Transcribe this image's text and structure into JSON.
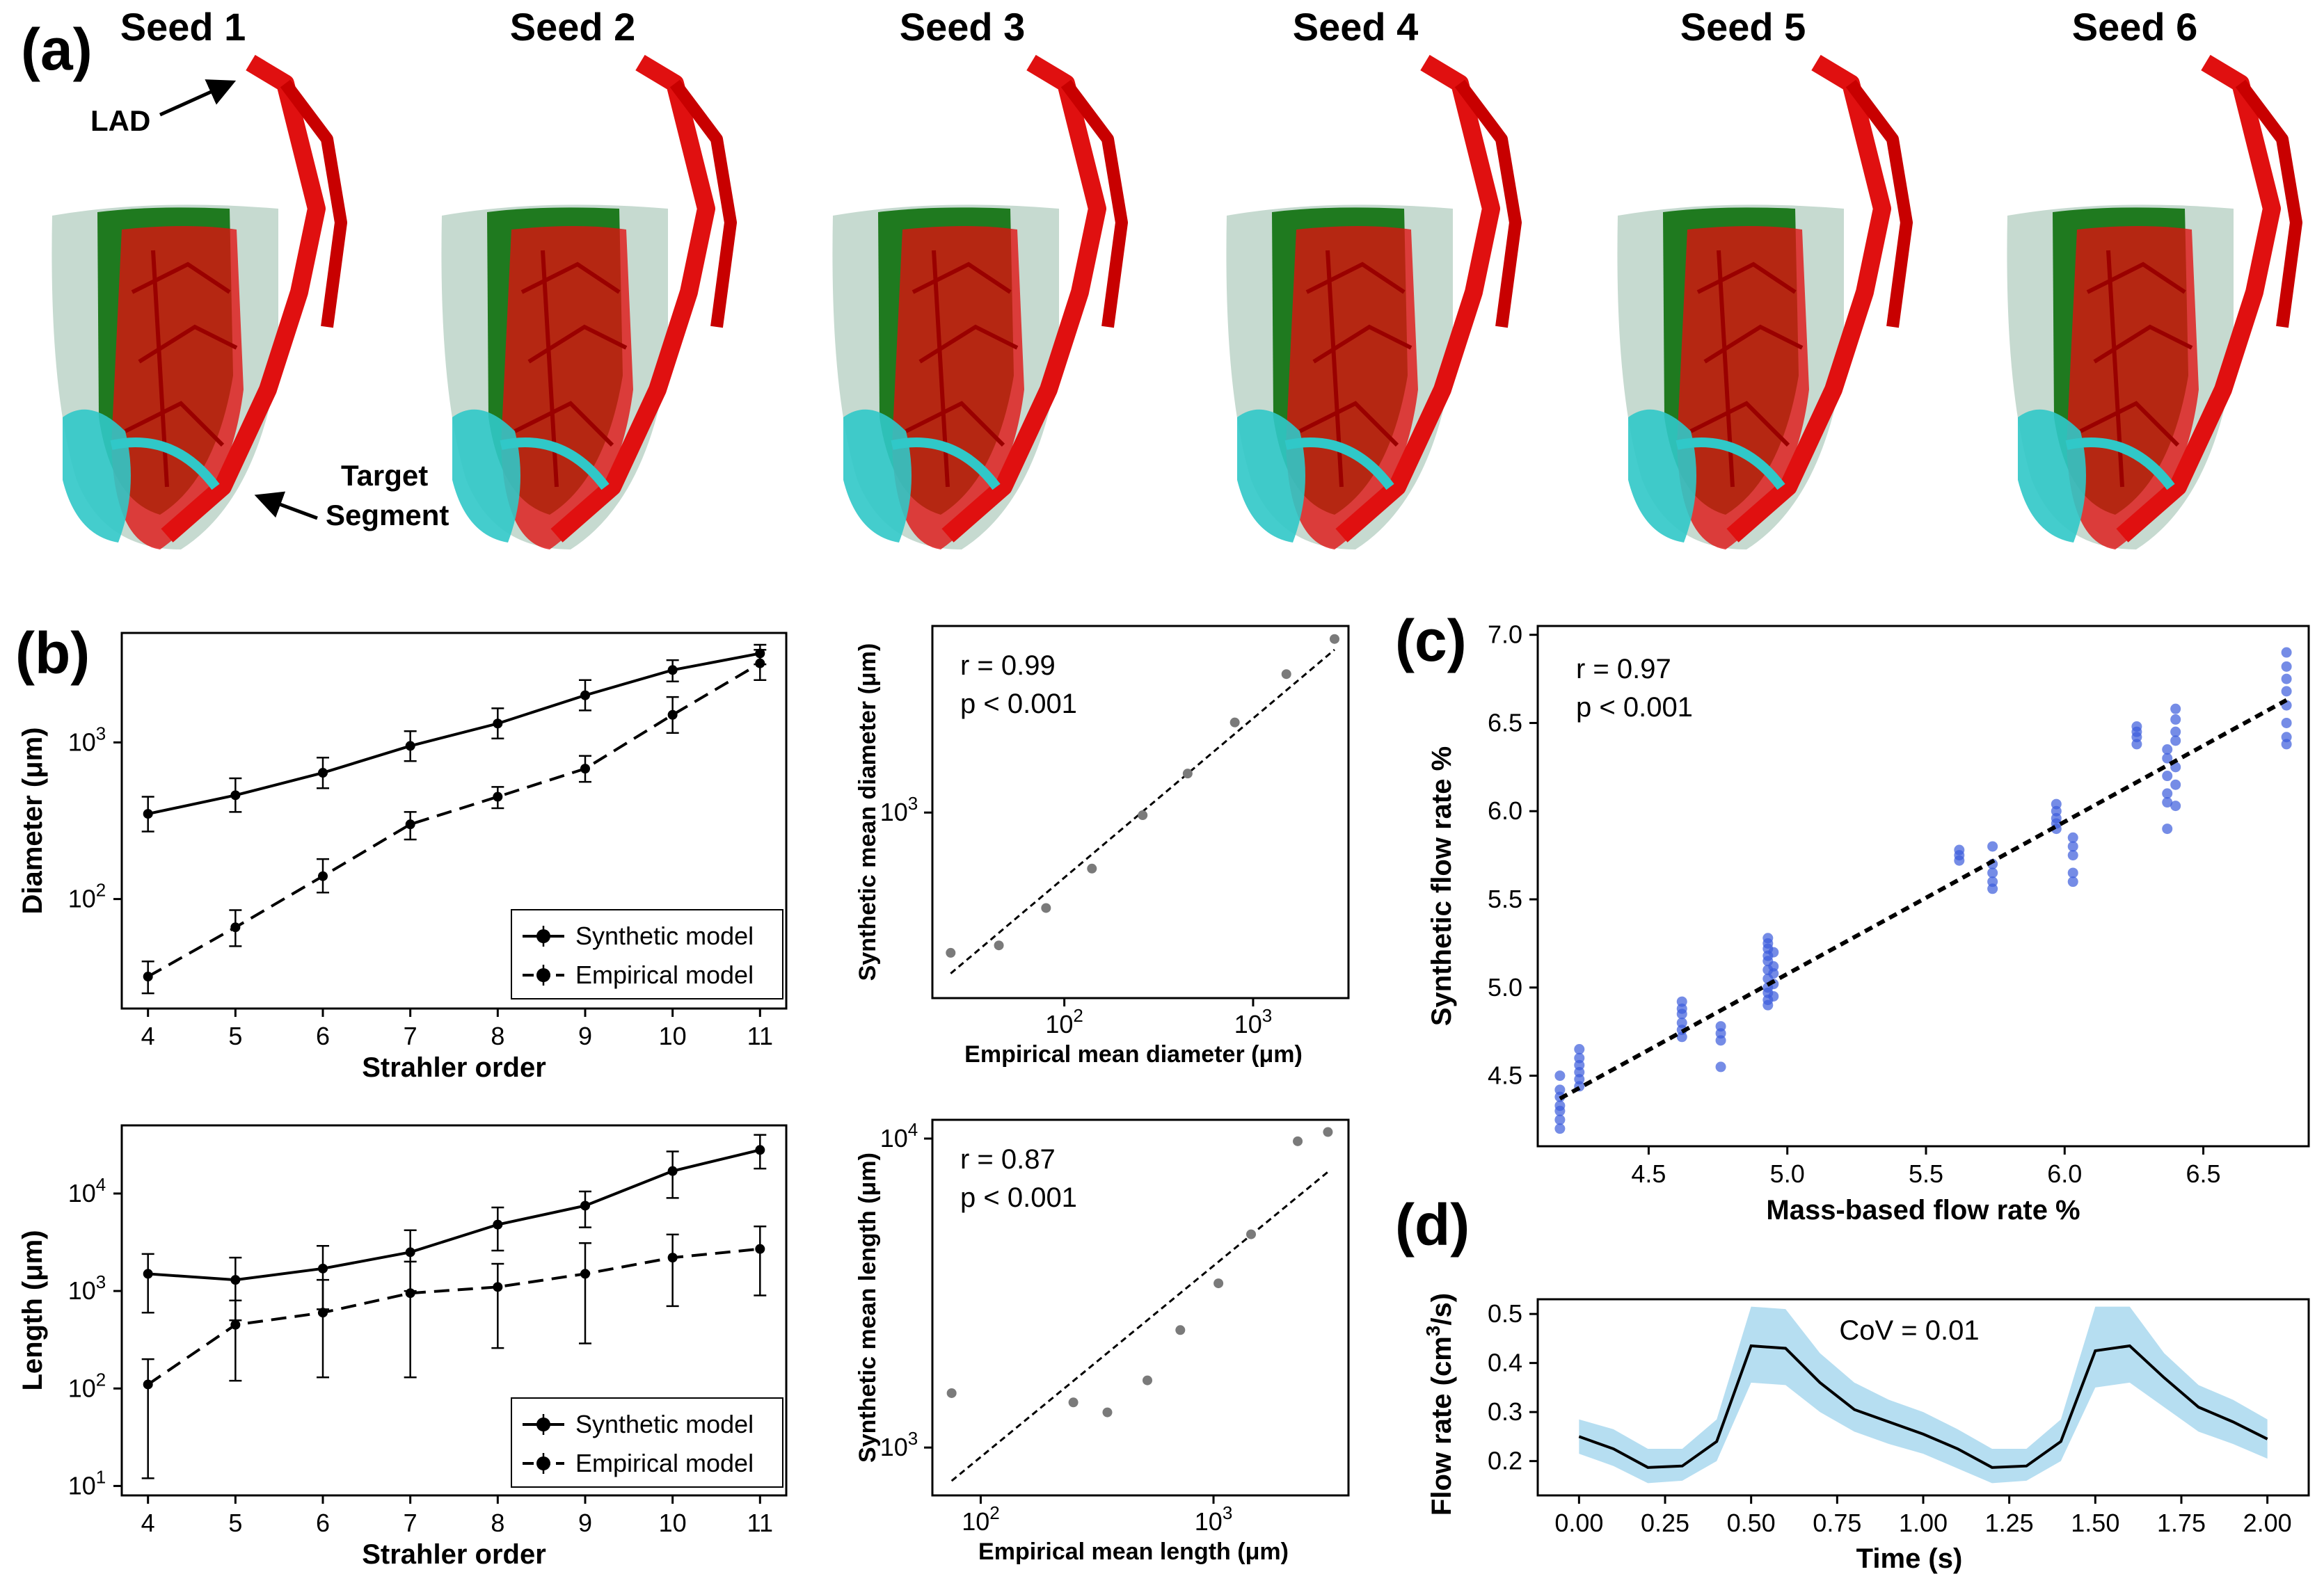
{
  "panel_labels": {
    "a": "(a)",
    "b": "(b)",
    "c": "(c)",
    "d": "(d)"
  },
  "panel_a": {
    "seeds": [
      "Seed 1",
      "Seed 2",
      "Seed 3",
      "Seed 4",
      "Seed 5",
      "Seed 6"
    ],
    "lad_label": "LAD",
    "target_label_1": "Target",
    "target_label_2": "Segment",
    "colors": {
      "tissue": "#bcd3c8",
      "myocardium": "#1f7a1f",
      "vessel": "#e01010",
      "target": "#30c8c8"
    }
  },
  "chart_data": [
    {
      "id": "diameter_vs_order",
      "type": "line",
      "x": [
        4,
        5,
        6,
        7,
        8,
        9,
        10,
        11
      ],
      "series": [
        {
          "name": "Synthetic model",
          "style": "solid",
          "values": [
            350,
            460,
            640,
            950,
            1320,
            2000,
            2900,
            3700
          ],
          "err_low": [
            270,
            360,
            510,
            760,
            1060,
            1600,
            2450,
            3150
          ],
          "err_high": [
            450,
            590,
            800,
            1180,
            1650,
            2500,
            3350,
            4200
          ]
        },
        {
          "name": "Empirical model",
          "style": "dashed",
          "values": [
            32,
            66,
            140,
            300,
            450,
            680,
            1500,
            3200
          ],
          "err_low": [
            25,
            50,
            110,
            240,
            380,
            560,
            1150,
            2500
          ],
          "err_high": [
            40,
            85,
            180,
            360,
            520,
            820,
            1950,
            3900
          ]
        }
      ],
      "xlabel": "Strahler order",
      "ylabel": "Diameter (μm)",
      "yscale": "log",
      "ylim": [
        20,
        5000
      ],
      "yticks": [
        {
          "v": 100,
          "label": "10",
          "exp": "2"
        },
        {
          "v": 1000,
          "label": "10",
          "exp": "3"
        }
      ],
      "legend": "lower-right"
    },
    {
      "id": "diameter_correlation",
      "type": "scatter",
      "x": [
        25,
        45,
        80,
        140,
        260,
        450,
        800,
        1500,
        2700
      ],
      "y": [
        340,
        360,
        480,
        650,
        980,
        1350,
        2000,
        2900,
        3800
      ],
      "fit_line": {
        "x": [
          25,
          2700
        ],
        "y": [
          290,
          3500
        ]
      },
      "xlabel": "Empirical mean diameter (μm)",
      "ylabel": "Synthetic mean diameter (μm)",
      "xscale": "log",
      "yscale": "log",
      "xlim": [
        20,
        3200
      ],
      "ylim": [
        240,
        4200
      ],
      "xticks": [
        {
          "v": 100,
          "label": "10",
          "exp": "2"
        },
        {
          "v": 1000,
          "label": "10",
          "exp": "3"
        }
      ],
      "yticks": [
        {
          "v": 1000,
          "label": "10",
          "exp": "3"
        }
      ],
      "stats": {
        "r": "r = 0.99",
        "p": "p < 0.001"
      }
    },
    {
      "id": "length_vs_order",
      "type": "line",
      "x": [
        4,
        5,
        6,
        7,
        8,
        9,
        10,
        11
      ],
      "series": [
        {
          "name": "Synthetic model",
          "style": "solid",
          "values": [
            1500,
            1300,
            1700,
            2500,
            4800,
            7500,
            17000,
            28000
          ],
          "err_low": [
            600,
            500,
            650,
            1000,
            2600,
            4500,
            9000,
            18000
          ],
          "err_high": [
            2400,
            2200,
            2900,
            4200,
            7200,
            10500,
            27000,
            40000
          ]
        },
        {
          "name": "Empirical model",
          "style": "dashed",
          "values": [
            110,
            450,
            600,
            950,
            1100,
            1500,
            2200,
            2700
          ],
          "err_low": [
            12,
            120,
            130,
            130,
            260,
            290,
            700,
            900
          ],
          "err_high": [
            200,
            800,
            1300,
            2000,
            1900,
            3100,
            3800,
            4600
          ]
        }
      ],
      "xlabel": "Strahler order",
      "ylabel": "Length (μm)",
      "yscale": "log",
      "ylim": [
        8,
        50000
      ],
      "yticks": [
        {
          "v": 10,
          "label": "10",
          "exp": "1"
        },
        {
          "v": 100,
          "label": "10",
          "exp": "2"
        },
        {
          "v": 1000,
          "label": "10",
          "exp": "3"
        },
        {
          "v": 10000,
          "label": "10",
          "exp": "4"
        }
      ],
      "legend": "lower-right"
    },
    {
      "id": "length_correlation",
      "type": "scatter",
      "x": [
        75,
        250,
        350,
        520,
        720,
        1050,
        1450,
        2300,
        3100
      ],
      "y": [
        1500,
        1400,
        1300,
        1650,
        2400,
        3400,
        4900,
        9800,
        10500
      ],
      "fit_line": {
        "x": [
          75,
          3100
        ],
        "y": [
          780,
          7800
        ]
      },
      "xlabel": "Empirical mean length (μm)",
      "ylabel": "Synthetic mean length (μm)",
      "xscale": "log",
      "yscale": "log",
      "xlim": [
        62,
        3800
      ],
      "ylim": [
        700,
        11500
      ],
      "xticks": [
        {
          "v": 100,
          "label": "10",
          "exp": "2"
        },
        {
          "v": 1000,
          "label": "10",
          "exp": "3"
        }
      ],
      "yticks": [
        {
          "v": 1000,
          "label": "10",
          "exp": "3"
        },
        {
          "v": 10000,
          "label": "10",
          "exp": "4"
        }
      ],
      "stats": {
        "r": "r = 0.87",
        "p": "p < 0.001"
      }
    },
    {
      "id": "flow_rate_correlation",
      "type": "scatter",
      "groups": [
        {
          "x": 4.18,
          "y": [
            4.2,
            4.25,
            4.3,
            4.33,
            4.38,
            4.42,
            4.5
          ]
        },
        {
          "x": 4.25,
          "y": [
            4.44,
            4.48,
            4.52,
            4.56,
            4.6,
            4.65
          ]
        },
        {
          "x": 4.62,
          "y": [
            4.72,
            4.76,
            4.8,
            4.85,
            4.88,
            4.92
          ]
        },
        {
          "x": 4.76,
          "y": [
            4.55,
            4.7,
            4.74,
            4.78
          ]
        },
        {
          "x": 4.93,
          "y": [
            4.9,
            4.93,
            4.97,
            5.0,
            5.05,
            5.1,
            5.15,
            5.18,
            5.22,
            5.25,
            5.28
          ]
        },
        {
          "x": 4.95,
          "y": [
            4.95,
            5.02,
            5.08,
            5.12,
            5.2
          ]
        },
        {
          "x": 5.62,
          "y": [
            5.72,
            5.75,
            5.78
          ]
        },
        {
          "x": 5.74,
          "y": [
            5.56,
            5.6,
            5.65,
            5.7,
            5.8
          ]
        },
        {
          "x": 5.97,
          "y": [
            5.9,
            5.93,
            5.96,
            6.0,
            6.04
          ]
        },
        {
          "x": 6.03,
          "y": [
            5.6,
            5.65,
            5.75,
            5.8,
            5.85
          ]
        },
        {
          "x": 6.26,
          "y": [
            6.38,
            6.42,
            6.45,
            6.48
          ]
        },
        {
          "x": 6.37,
          "y": [
            5.9,
            6.05,
            6.1,
            6.2,
            6.3,
            6.35
          ]
        },
        {
          "x": 6.4,
          "y": [
            6.03,
            6.15,
            6.25,
            6.4,
            6.45,
            6.52,
            6.58
          ]
        },
        {
          "x": 6.8,
          "y": [
            6.38,
            6.42,
            6.5,
            6.6,
            6.68,
            6.75,
            6.82,
            6.9
          ]
        }
      ],
      "fit_line": {
        "x": [
          4.18,
          6.8
        ],
        "y": [
          4.37,
          6.63
        ]
      },
      "xlabel": "Mass-based flow rate %",
      "ylabel": "Synthetic flow rate %",
      "xlim": [
        4.1,
        6.88
      ],
      "ylim": [
        4.1,
        7.05
      ],
      "xticks": [
        "4.5",
        "5.0",
        "5.5",
        "6.0",
        "6.5"
      ],
      "yticks": [
        "4.5",
        "5.0",
        "5.5",
        "6.0",
        "6.5",
        "7.0"
      ],
      "stats": {
        "r": "r = 0.97",
        "p": "p < 0.001"
      },
      "color": "#3b5bdb"
    },
    {
      "id": "flow_rate_time",
      "type": "area",
      "x": [
        0,
        0.1,
        0.2,
        0.3,
        0.4,
        0.5,
        0.6,
        0.7,
        0.8,
        0.9,
        1.0,
        1.1,
        1.2,
        1.3,
        1.4,
        1.5,
        1.6,
        1.7,
        1.8,
        1.9,
        2.0
      ],
      "mean": [
        0.25,
        0.225,
        0.187,
        0.19,
        0.24,
        0.435,
        0.43,
        0.36,
        0.305,
        0.28,
        0.255,
        0.225,
        0.187,
        0.19,
        0.24,
        0.425,
        0.435,
        0.37,
        0.31,
        0.28,
        0.245
      ],
      "upper": [
        0.285,
        0.265,
        0.225,
        0.225,
        0.285,
        0.515,
        0.51,
        0.42,
        0.36,
        0.325,
        0.3,
        0.265,
        0.225,
        0.225,
        0.285,
        0.515,
        0.515,
        0.42,
        0.355,
        0.325,
        0.285
      ],
      "lower": [
        0.215,
        0.19,
        0.155,
        0.16,
        0.2,
        0.36,
        0.355,
        0.3,
        0.26,
        0.235,
        0.215,
        0.185,
        0.155,
        0.16,
        0.2,
        0.35,
        0.36,
        0.31,
        0.26,
        0.235,
        0.205
      ],
      "xlabel": "Time (s)",
      "ylabel_main": "Flow rate (cm",
      "ylabel_exp": "3",
      "ylabel_tail": "/s)",
      "xlim": [
        -0.12,
        2.12
      ],
      "ylim": [
        0.13,
        0.53
      ],
      "xticks": [
        "0.00",
        "0.25",
        "0.50",
        "0.75",
        "1.00",
        "1.25",
        "1.50",
        "1.75",
        "2.00"
      ],
      "yticks": [
        "0.2",
        "0.3",
        "0.4",
        "0.5"
      ],
      "annotation": "CoV = 0.01",
      "band_color": "#a9d8ef",
      "line_color": "#000000"
    }
  ]
}
